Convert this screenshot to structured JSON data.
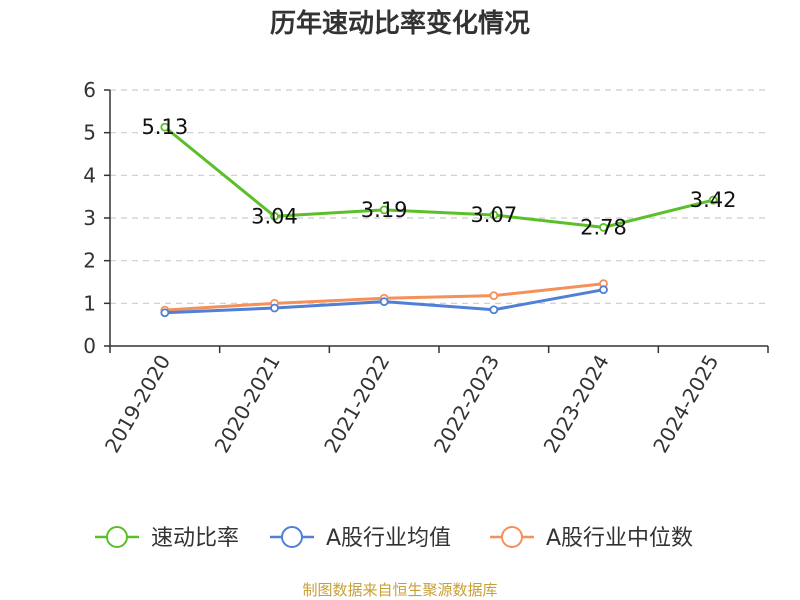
{
  "chart_data": {
    "type": "line",
    "title": "历年速动比率变化情况",
    "categories": [
      "2019-2020",
      "2020-2021",
      "2021-2022",
      "2022-2023",
      "2023-2024",
      "2024-2025"
    ],
    "series": [
      {
        "name": "速动比率",
        "color": "#5bbf2a",
        "values": [
          5.13,
          3.04,
          3.19,
          3.07,
          2.78,
          3.42
        ],
        "labels": [
          "5.13",
          "3.04",
          "3.19",
          "3.07",
          "2.78",
          "3.42"
        ]
      },
      {
        "name": "A股行业均值",
        "color": "#4f7fd6",
        "values": [
          0.78,
          0.89,
          1.04,
          0.85,
          1.32,
          null
        ]
      },
      {
        "name": "A股行业中位数",
        "color": "#f4905a",
        "values": [
          0.84,
          1.0,
          1.12,
          1.18,
          1.46,
          null
        ]
      }
    ],
    "ylim": [
      0,
      6
    ],
    "yticks": [
      "0",
      "1",
      "2",
      "3",
      "4",
      "5",
      "6"
    ],
    "grid": true,
    "legend": "bottom",
    "source": "制图数据来自恒生聚源数据库"
  }
}
